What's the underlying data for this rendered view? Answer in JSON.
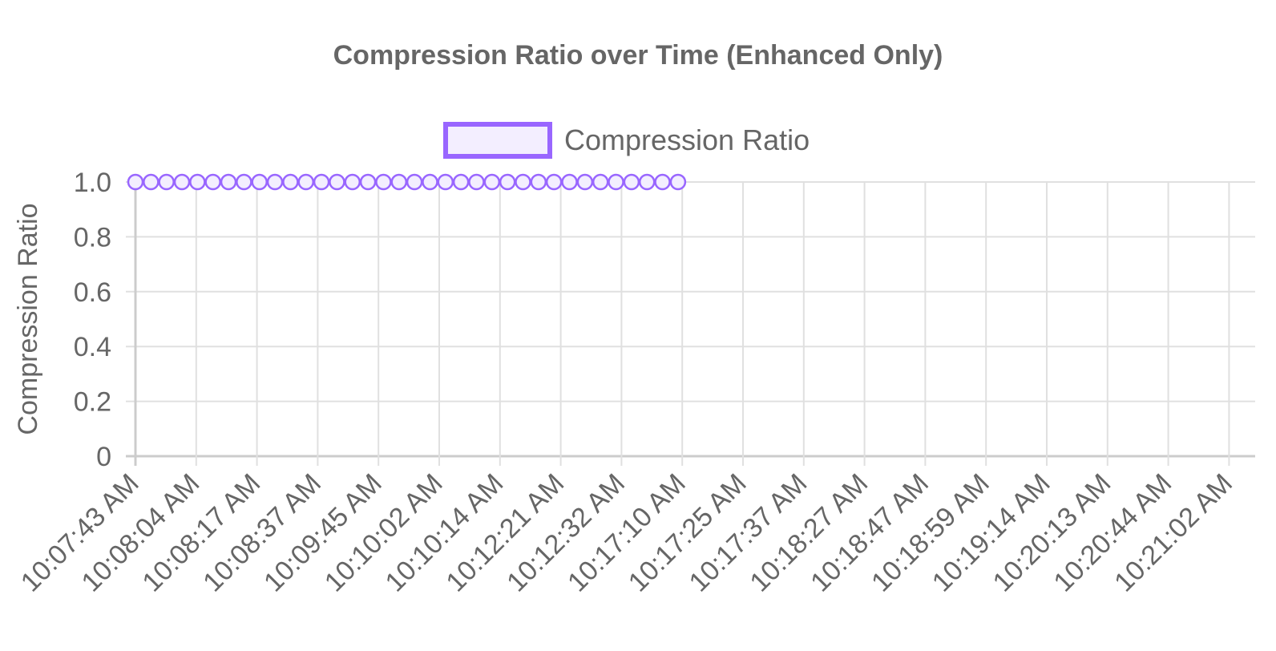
{
  "chart_data": {
    "type": "line",
    "title": "Compression Ratio over Time (Enhanced Only)",
    "xlabel": "",
    "ylabel": "Compression Ratio",
    "ylim": [
      0,
      1.0
    ],
    "yticks": [
      "0",
      "0.2",
      "0.4",
      "0.6",
      "0.8",
      "1.0"
    ],
    "grid": true,
    "legend_position": "top",
    "x_tick_labels": [
      "10:07:43 AM",
      "10:08:04 AM",
      "10:08:17 AM",
      "10:08:37 AM",
      "10:09:45 AM",
      "10:10:02 AM",
      "10:10:14 AM",
      "10:12:21 AM",
      "10:12:32 AM",
      "10:17:10 AM",
      "10:17:25 AM",
      "10:17:37 AM",
      "10:18:27 AM",
      "10:18:47 AM",
      "10:18:59 AM",
      "10:19:14 AM",
      "10:20:13 AM",
      "10:20:44 AM",
      "10:21:02 AM"
    ],
    "series": [
      {
        "name": "Compression Ratio",
        "color": "#9966ff",
        "fill": "#f3eeff",
        "points_count": 36,
        "values": [
          1,
          1,
          1,
          1,
          1,
          1,
          1,
          1,
          1,
          1,
          1,
          1,
          1,
          1,
          1,
          1,
          1,
          1,
          1,
          1,
          1,
          1,
          1,
          1,
          1,
          1,
          1,
          1,
          1,
          1,
          1,
          1,
          1,
          1,
          1,
          1
        ]
      }
    ]
  }
}
